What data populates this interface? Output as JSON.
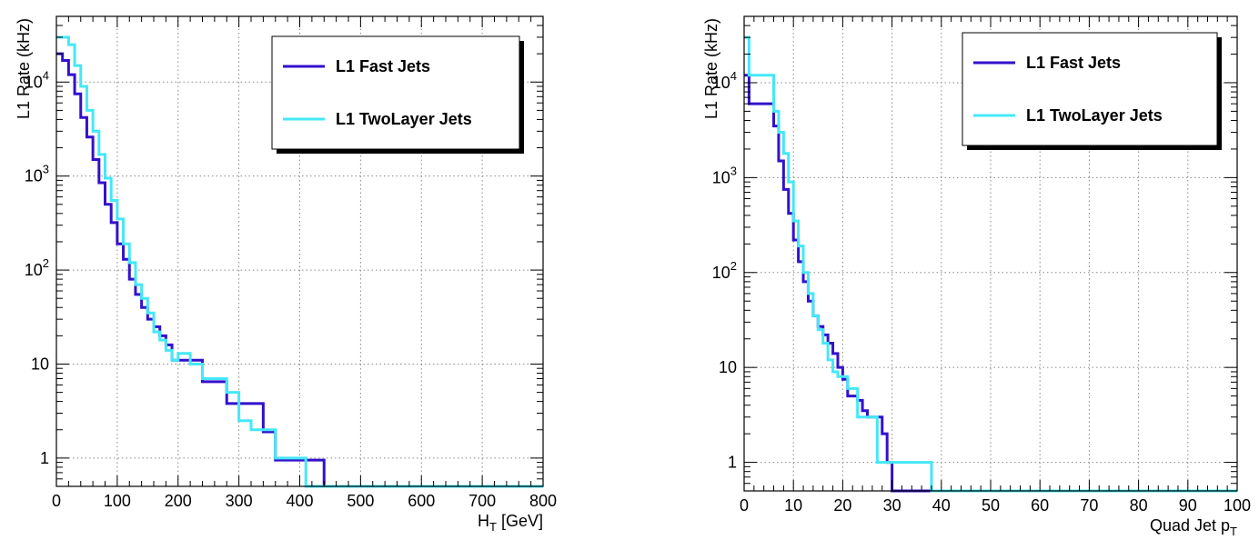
{
  "chart_data": [
    {
      "type": "line",
      "step": true,
      "xlabel": "H_T [GeV]",
      "ylabel": "L1 Rate (kHz)",
      "xlim": [
        0,
        800
      ],
      "ylim": [
        0.5,
        50000
      ],
      "yscale": "log",
      "grid": true,
      "legend_position": "top-right",
      "x_ticks": [
        0,
        100,
        200,
        300,
        400,
        500,
        600,
        700,
        800
      ],
      "x_tick_labels": [
        "0",
        "100",
        "200",
        "300",
        "400",
        "500",
        "600",
        "700",
        "800"
      ],
      "y_ticks": [
        1,
        10,
        100,
        1000,
        10000
      ],
      "y_tick_labels": [
        "1",
        "10",
        "10^2",
        "10^3",
        "10^4"
      ],
      "series": [
        {
          "name": "L1 Fast Jets",
          "color": "#3311cc",
          "x": [
            0,
            10,
            20,
            30,
            40,
            50,
            60,
            70,
            80,
            90,
            100,
            110,
            120,
            130,
            140,
            150,
            160,
            170,
            180,
            190,
            200,
            220,
            240,
            260,
            280,
            300,
            320,
            340,
            360,
            380,
            400,
            420,
            440,
            800
          ],
          "values": [
            20000,
            17000,
            12000,
            7500,
            4200,
            2600,
            1500,
            850,
            500,
            320,
            190,
            130,
            80,
            55,
            40,
            30,
            25,
            20,
            16,
            11,
            11,
            11,
            6.5,
            6.5,
            3.8,
            3.8,
            3.8,
            1.9,
            0.95,
            0.95,
            0.95,
            0.95,
            0.45,
            0.45
          ]
        },
        {
          "name": "L1 TwoLayer Jets",
          "color": "#44e8f8",
          "x": [
            0,
            10,
            20,
            30,
            40,
            50,
            60,
            70,
            80,
            90,
            100,
            110,
            120,
            130,
            140,
            150,
            160,
            170,
            180,
            190,
            200,
            220,
            240,
            260,
            280,
            300,
            320,
            340,
            360,
            380,
            400,
            410,
            420,
            440,
            800
          ],
          "values": [
            30000,
            30000,
            25000,
            15000,
            9000,
            5000,
            3000,
            1700,
            950,
            550,
            350,
            190,
            120,
            70,
            50,
            35,
            22,
            18,
            14,
            11,
            13,
            10,
            7,
            7,
            5,
            2.5,
            2.0,
            2.0,
            1.0,
            1.0,
            1.0,
            0.45,
            0.45,
            0.45,
            0.45
          ]
        }
      ]
    },
    {
      "type": "line",
      "step": true,
      "xlabel": "Quad Jet p_T",
      "ylabel": "L1 Rate (kHz)",
      "xlim": [
        0,
        100
      ],
      "ylim": [
        0.5,
        50000
      ],
      "yscale": "log",
      "grid": true,
      "legend_position": "top-right",
      "x_ticks": [
        0,
        10,
        20,
        30,
        40,
        50,
        60,
        70,
        80,
        90,
        100
      ],
      "x_tick_labels": [
        "0",
        "10",
        "20",
        "30",
        "40",
        "50",
        "60",
        "70",
        "80",
        "90",
        "100"
      ],
      "y_ticks": [
        1,
        10,
        100,
        1000,
        10000
      ],
      "y_tick_labels": [
        "1",
        "10",
        "10^2",
        "10^3",
        "10^4"
      ],
      "series": [
        {
          "name": "L1 Fast Jets",
          "color": "#3311cc",
          "x": [
            0,
            1,
            2,
            6,
            7,
            8,
            9,
            10,
            11,
            12,
            13,
            14,
            15,
            16,
            17,
            18,
            19,
            20,
            21,
            22,
            23,
            24,
            25,
            26,
            27,
            28,
            29,
            30,
            31,
            38,
            100
          ],
          "values": [
            12000,
            6000,
            6000,
            3500,
            1500,
            750,
            420,
            220,
            130,
            80,
            50,
            35,
            27,
            22,
            18,
            14,
            10,
            7.5,
            5,
            5,
            4.5,
            3.5,
            3,
            3,
            3,
            2,
            1,
            0.45,
            0.45,
            0.45,
            0.45
          ]
        },
        {
          "name": "L1 TwoLayer Jets",
          "color": "#44e8f8",
          "x": [
            0,
            1,
            2,
            6,
            7,
            8,
            9,
            10,
            11,
            12,
            13,
            14,
            15,
            16,
            17,
            18,
            19,
            20,
            21,
            22,
            23,
            24,
            25,
            26,
            27,
            28,
            29,
            30,
            31,
            38,
            100
          ],
          "values": [
            30000,
            12000,
            12000,
            5000,
            3000,
            1800,
            900,
            350,
            190,
            100,
            60,
            35,
            25,
            18,
            12,
            9,
            8,
            8,
            6,
            6,
            3,
            3,
            3,
            3,
            1,
            1,
            1,
            1,
            1,
            0.45,
            0.45
          ]
        }
      ]
    }
  ]
}
